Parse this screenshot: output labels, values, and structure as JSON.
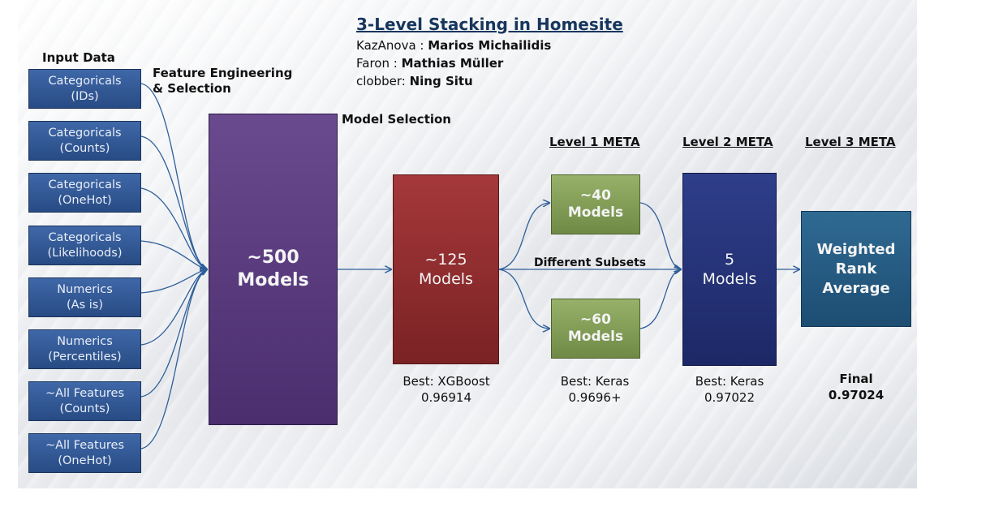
{
  "diagram": {
    "title": "3-Level Stacking in Homesite",
    "credits": [
      {
        "handle": "KazAnova",
        "sep": " : ",
        "name": "Marios  Michailidis"
      },
      {
        "handle": "Faron",
        "sep": " : ",
        "name": "Mathias  Müller"
      },
      {
        "handle": "clobber",
        "sep": ": ",
        "name": "Ning Situ"
      }
    ],
    "labels": {
      "input_data": "Input Data",
      "feature_engineering_1": "Feature Engineering",
      "feature_engineering_2": "& Selection",
      "model_selection": "Model Selection",
      "level1": "Level 1 META",
      "level2": "Level 2 META",
      "level3": "Level 3 META",
      "different_subsets": "Different Subsets"
    },
    "inputs": [
      {
        "line1": "Categoricals",
        "line2": "(IDs)"
      },
      {
        "line1": "Categoricals",
        "line2": "(Counts)"
      },
      {
        "line1": "Categoricals",
        "line2": "(OneHot)"
      },
      {
        "line1": "Categoricals",
        "line2": "(Likelihoods)"
      },
      {
        "line1": "Numerics",
        "line2": "(As is)"
      },
      {
        "line1": "Numerics",
        "line2": "(Percentiles)"
      },
      {
        "line1": "~All Features",
        "line2": "(Counts)"
      },
      {
        "line1": "~All Features",
        "line2": "(OneHot)"
      }
    ],
    "boxes": {
      "m500": {
        "line1": "~500",
        "line2": "Models"
      },
      "m125": {
        "line1": "~125",
        "line2": "Models"
      },
      "m40": {
        "line1": "~40",
        "line2": "Models"
      },
      "m60": {
        "line1": "~60",
        "line2": "Models"
      },
      "m5": {
        "line1": "5",
        "line2": "Models"
      },
      "wra": {
        "line1": "Weighted",
        "line2": "Rank",
        "line3": "Average"
      }
    },
    "results": {
      "level0": {
        "line1": "Best: XGBoost",
        "line2": "0.96914"
      },
      "level1": {
        "line1": "Best: Keras",
        "line2": "0.9696+"
      },
      "level2": {
        "line1": "Best: Keras",
        "line2": "0.97022"
      },
      "level3": {
        "line1": "Final",
        "line2": "0.97024"
      }
    },
    "colors": {
      "input": "#2f5597",
      "m500": "#5b3d80",
      "m125": "#8f2d2f",
      "meta1": "#86a055",
      "m5": "#243478",
      "wra": "#25587f",
      "arrow": "#2f5f9a"
    }
  }
}
